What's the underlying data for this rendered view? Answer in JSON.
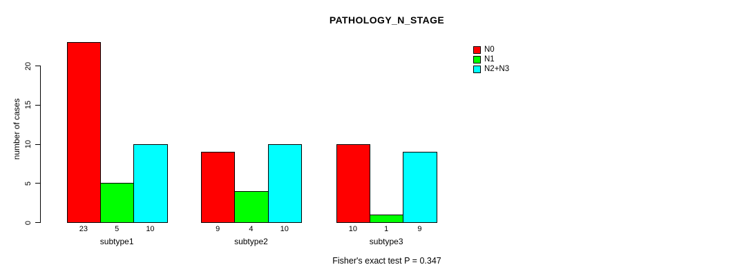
{
  "title": "PATHOLOGY_N_STAGE",
  "annotation": "Fisher's exact test P = 0.347",
  "chart_data": {
    "type": "bar",
    "title": "PATHOLOGY_N_STAGE",
    "xlabel": "",
    "ylabel": "number of cases",
    "categories": [
      "subtype1",
      "subtype2",
      "subtype3"
    ],
    "series": [
      {
        "name": "N0",
        "color": "#FF0000",
        "values": [
          23,
          9,
          10
        ]
      },
      {
        "name": "N1",
        "color": "#00FF00",
        "values": [
          5,
          4,
          1
        ]
      },
      {
        "name": "N2+N3",
        "color": "#00FFFF",
        "values": [
          10,
          10,
          9
        ]
      }
    ],
    "bar_value_labels": [
      [
        23,
        5,
        10
      ],
      [
        9,
        4,
        10
      ],
      [
        10,
        1,
        9
      ]
    ],
    "yticks": [
      0,
      5,
      10,
      15,
      20
    ],
    "ylim": [
      0,
      23
    ],
    "grid": false,
    "legend_position": "right",
    "annotation": "Fisher's exact test P = 0.347"
  }
}
